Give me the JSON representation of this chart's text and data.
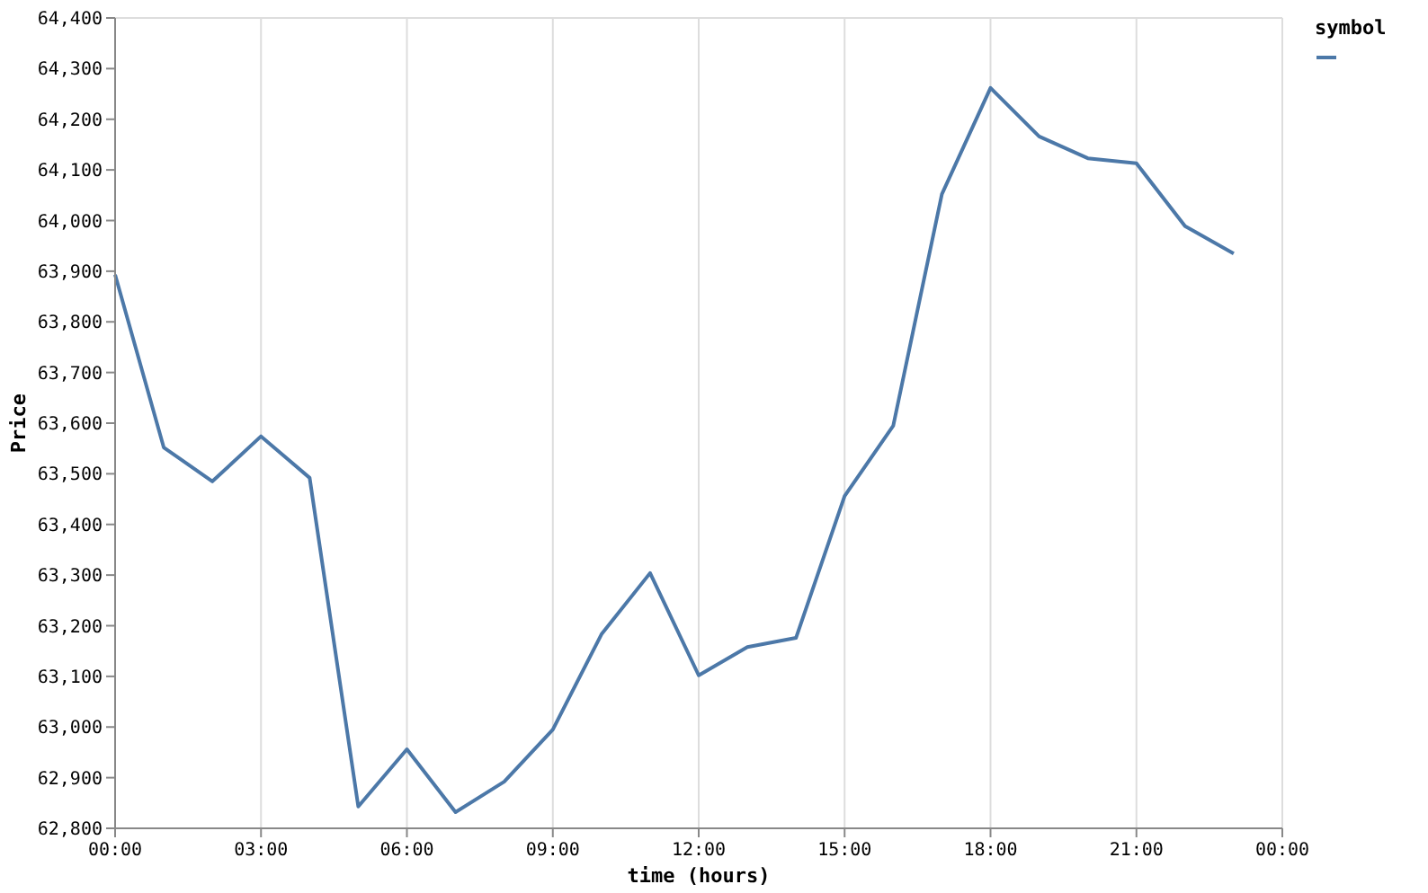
{
  "chart_data": {
    "type": "line",
    "xlabel": "time (hours)",
    "ylabel": "Price",
    "legend_title": "symbol",
    "grid": "x",
    "line_style": "solid",
    "x": [
      0,
      1,
      2,
      3,
      4,
      5,
      6,
      7,
      8,
      9,
      10,
      11,
      12,
      13,
      14,
      15,
      16,
      17,
      18,
      19,
      20,
      21,
      22,
      23
    ],
    "series": [
      {
        "color": "#4c78a8",
        "values": [
          63893,
          63552,
          63485,
          63574,
          63492,
          62843,
          62956,
          62832,
          62892,
          62995,
          63183,
          63304,
          63102,
          63158,
          63176,
          63456,
          63595,
          64052,
          64262,
          64166,
          64123,
          64113,
          63989,
          63935
        ]
      }
    ],
    "xlim": [
      0,
      24
    ],
    "xticks": [
      {
        "value": 0,
        "label": "00:00"
      },
      {
        "value": 3,
        "label": "03:00"
      },
      {
        "value": 6,
        "label": "06:00"
      },
      {
        "value": 9,
        "label": "09:00"
      },
      {
        "value": 12,
        "label": "12:00"
      },
      {
        "value": 15,
        "label": "15:00"
      },
      {
        "value": 18,
        "label": "18:00"
      },
      {
        "value": 21,
        "label": "21:00"
      },
      {
        "value": 24,
        "label": "00:00"
      }
    ],
    "ylim": [
      62800,
      64400
    ],
    "yticks": [
      {
        "value": 62800,
        "label": "62,800"
      },
      {
        "value": 62900,
        "label": "62,900"
      },
      {
        "value": 63000,
        "label": "63,000"
      },
      {
        "value": 63100,
        "label": "63,100"
      },
      {
        "value": 63200,
        "label": "63,200"
      },
      {
        "value": 63300,
        "label": "63,300"
      },
      {
        "value": 63400,
        "label": "63,400"
      },
      {
        "value": 63500,
        "label": "63,500"
      },
      {
        "value": 63600,
        "label": "63,600"
      },
      {
        "value": 63700,
        "label": "63,700"
      },
      {
        "value": 63800,
        "label": "63,800"
      },
      {
        "value": 63900,
        "label": "63,900"
      },
      {
        "value": 64000,
        "label": "64,000"
      },
      {
        "value": 64100,
        "label": "64,100"
      },
      {
        "value": 64200,
        "label": "64,200"
      },
      {
        "value": 64300,
        "label": "64,300"
      },
      {
        "value": 64400,
        "label": "64,400"
      }
    ]
  }
}
